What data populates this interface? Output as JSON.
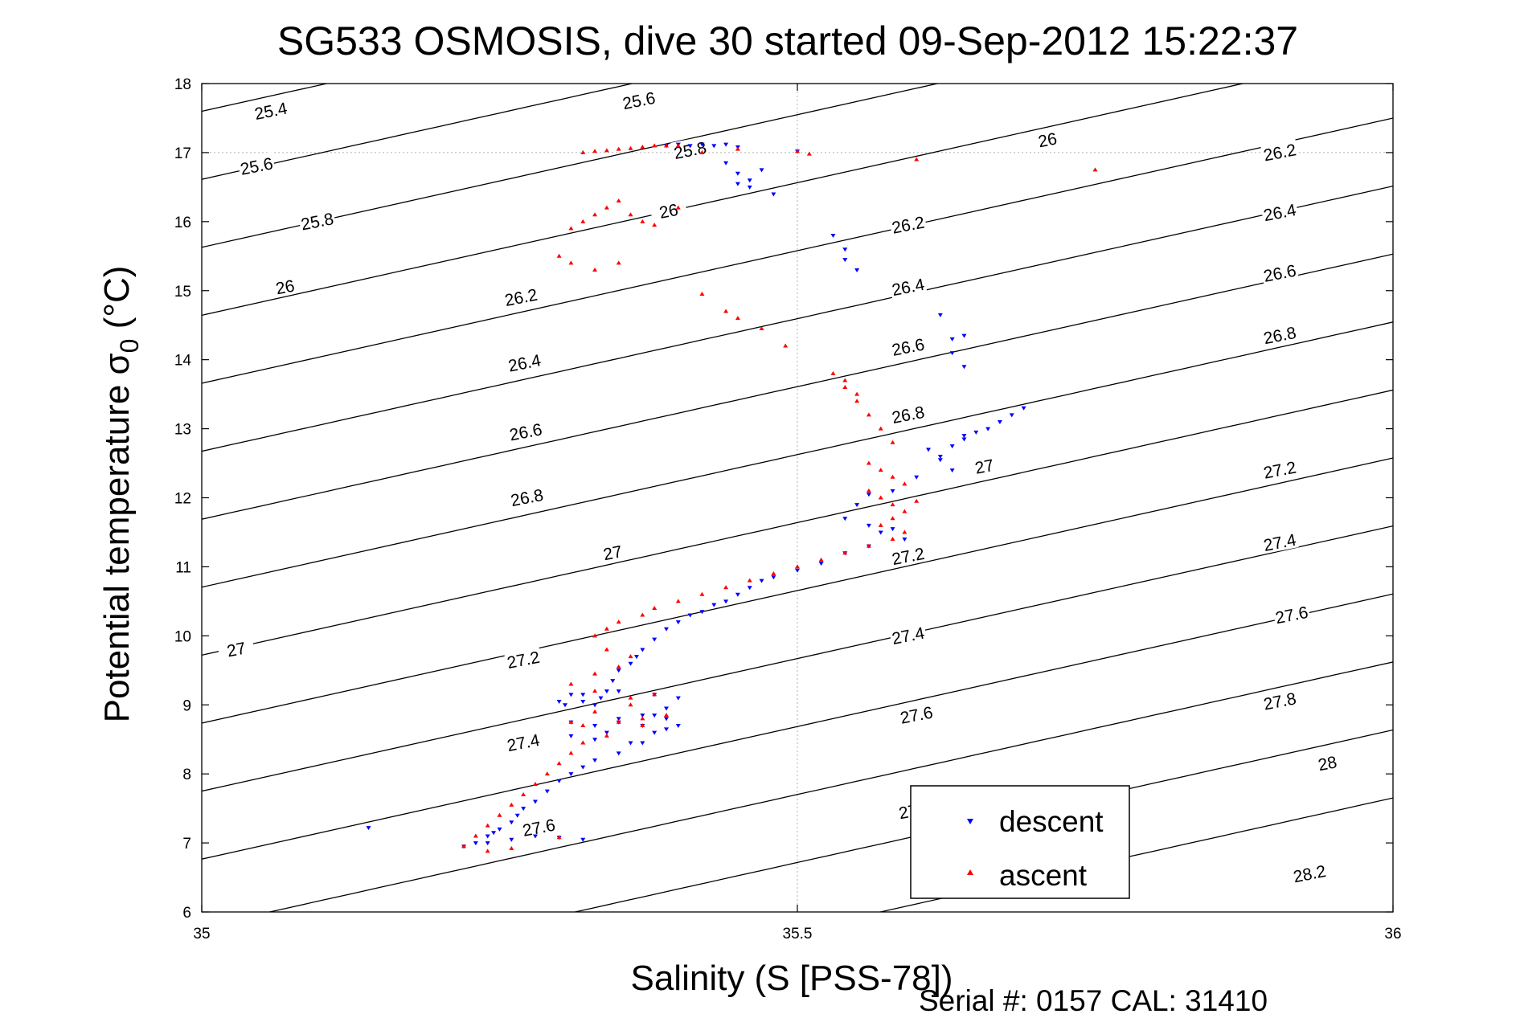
{
  "chart_data": {
    "type": "scatter",
    "title": "SG533 OSMOSIS, dive 30 started 09-Sep-2012 15:22:37",
    "xlabel": "Salinity (S [PSS-78])",
    "ylabel_main": "Potential temperature ",
    "ylabel_sigma": "σ",
    "ylabel_sub": "0",
    "ylabel_unit": " (°C)",
    "xlim": [
      35,
      36
    ],
    "ylim": [
      6,
      18
    ],
    "x_ticks": [
      35,
      35.5,
      36
    ],
    "x_tick_labels": [
      "35",
      "35.5",
      "36"
    ],
    "y_ticks": [
      6,
      7,
      8,
      9,
      10,
      11,
      12,
      13,
      14,
      15,
      16,
      17,
      18
    ],
    "y_tick_labels": [
      "6",
      "7",
      "8",
      "9",
      "10",
      "11",
      "12",
      "13",
      "14",
      "15",
      "16",
      "17",
      "18"
    ],
    "grid": {
      "x": [
        35.5
      ],
      "y": [
        17
      ]
    },
    "legend_position": "bottom-center",
    "footer": "Serial #: 0157  CAL: 31410",
    "colors": {
      "descent": "#0000ff",
      "ascent": "#ff0000",
      "contour": "#000000",
      "axes": "#000000",
      "grid": "#b0b0b0"
    },
    "contours": {
      "levels": [
        25.4,
        25.6,
        25.8,
        26,
        26.2,
        26.4,
        26.6,
        26.8,
        27,
        27.2,
        27.4,
        27.6,
        27.8,
        28,
        28.2
      ],
      "labels": [
        {
          "text": "25.4",
          "x": 35.058,
          "y": 17.6
        },
        {
          "text": "25.6",
          "x": 35.367,
          "y": 17.75
        },
        {
          "text": "25.6",
          "x": 35.046,
          "y": 16.8
        },
        {
          "text": "25.8",
          "x": 35.41,
          "y": 17.03
        },
        {
          "text": "26",
          "x": 35.71,
          "y": 17.18
        },
        {
          "text": "26.2",
          "x": 35.905,
          "y": 17.0
        },
        {
          "text": "25.8",
          "x": 35.097,
          "y": 16.0
        },
        {
          "text": "26",
          "x": 35.392,
          "y": 16.15
        },
        {
          "text": "26.2",
          "x": 35.593,
          "y": 15.95
        },
        {
          "text": "26.4",
          "x": 35.905,
          "y": 16.13
        },
        {
          "text": "26",
          "x": 35.07,
          "y": 15.05
        },
        {
          "text": "26.2",
          "x": 35.268,
          "y": 14.9
        },
        {
          "text": "26.4",
          "x": 35.593,
          "y": 15.05
        },
        {
          "text": "26.6",
          "x": 35.905,
          "y": 15.25
        },
        {
          "text": "26.4",
          "x": 35.271,
          "y": 13.95
        },
        {
          "text": "26.6",
          "x": 35.593,
          "y": 14.18
        },
        {
          "text": "26.8",
          "x": 35.905,
          "y": 14.35
        },
        {
          "text": "26.6",
          "x": 35.272,
          "y": 12.95
        },
        {
          "text": "26.8",
          "x": 35.593,
          "y": 13.2
        },
        {
          "text": "27",
          "x": 35.657,
          "y": 12.45
        },
        {
          "text": "26.8",
          "x": 35.273,
          "y": 12.0
        },
        {
          "text": "27.2",
          "x": 35.905,
          "y": 12.4
        },
        {
          "text": "27",
          "x": 35.345,
          "y": 11.2
        },
        {
          "text": "27.2",
          "x": 35.593,
          "y": 11.15
        },
        {
          "text": "27.4",
          "x": 35.905,
          "y": 11.35
        },
        {
          "text": "27",
          "x": 35.029,
          "y": 9.8
        },
        {
          "text": "27.2",
          "x": 35.27,
          "y": 9.65
        },
        {
          "text": "27.4",
          "x": 35.593,
          "y": 10.0
        },
        {
          "text": "27.6",
          "x": 35.915,
          "y": 10.3
        },
        {
          "text": "27.4",
          "x": 35.27,
          "y": 8.45
        },
        {
          "text": "27.6",
          "x": 35.6,
          "y": 8.85
        },
        {
          "text": "27.8",
          "x": 35.905,
          "y": 9.05
        },
        {
          "text": "27.6",
          "x": 35.283,
          "y": 7.22
        },
        {
          "text": "27",
          "x": 35.593,
          "y": 7.45
        },
        {
          "text": "28",
          "x": 35.945,
          "y": 8.15
        },
        {
          "text": "28.2",
          "x": 35.93,
          "y": 6.55
        }
      ]
    },
    "series": [
      {
        "name": "descent",
        "marker": "triangle-down",
        "x": [
          35.39,
          35.4,
          35.41,
          35.42,
          35.43,
          35.44,
          35.45,
          35.5,
          35.44,
          35.45,
          35.46,
          35.47,
          35.45,
          35.46,
          35.48,
          35.53,
          35.54,
          35.54,
          35.55,
          35.62,
          35.63,
          35.63,
          35.64,
          35.64,
          35.66,
          35.67,
          35.68,
          35.69,
          35.65,
          35.64,
          35.63,
          35.62,
          35.61,
          35.62,
          35.63,
          35.64,
          35.6,
          35.58,
          35.56,
          35.55,
          35.54,
          35.56,
          35.57,
          35.58,
          35.59,
          35.56,
          35.54,
          35.52,
          35.5,
          35.48,
          35.47,
          35.46,
          35.45,
          35.44,
          35.43,
          35.42,
          35.41,
          35.4,
          35.39,
          35.38,
          35.37,
          35.365,
          35.36,
          35.35,
          35.345,
          35.34,
          35.335,
          35.33,
          35.32,
          35.31,
          35.305,
          35.3,
          35.32,
          35.35,
          35.38,
          35.4,
          35.39,
          35.37,
          35.35,
          35.33,
          35.31,
          35.35,
          35.38,
          35.39,
          35.37,
          35.34,
          35.31,
          35.33,
          35.36,
          35.38,
          35.4,
          35.39,
          35.37,
          35.35,
          35.33,
          35.32,
          35.31,
          35.3,
          35.29,
          35.28,
          35.27,
          35.265,
          35.26,
          35.25,
          35.245,
          35.24,
          35.23,
          35.22,
          35.24,
          35.26,
          35.28,
          35.3,
          35.32,
          35.14
        ],
        "y": [
          17.1,
          17.12,
          17.1,
          17.12,
          17.1,
          17.12,
          17.08,
          17.02,
          16.85,
          16.7,
          16.6,
          16.75,
          16.55,
          16.5,
          16.4,
          15.8,
          15.6,
          15.45,
          15.3,
          14.65,
          14.3,
          14.1,
          13.9,
          14.35,
          13.0,
          13.1,
          13.2,
          13.3,
          12.95,
          12.85,
          12.75,
          12.6,
          12.7,
          12.55,
          12.4,
          12.9,
          12.3,
          12.1,
          12.05,
          11.9,
          11.7,
          11.6,
          11.5,
          11.55,
          11.4,
          11.3,
          11.2,
          11.05,
          10.95,
          10.85,
          10.8,
          10.7,
          10.6,
          10.5,
          10.45,
          10.35,
          10.3,
          10.2,
          10.1,
          9.95,
          9.8,
          9.7,
          9.6,
          9.5,
          9.35,
          9.2,
          9.1,
          9.0,
          9.05,
          9.15,
          9.0,
          9.05,
          9.15,
          9.2,
          9.15,
          9.1,
          8.95,
          8.85,
          8.75,
          8.7,
          8.75,
          8.8,
          8.85,
          8.8,
          8.7,
          8.6,
          8.55,
          8.5,
          8.45,
          8.6,
          8.7,
          8.65,
          8.45,
          8.3,
          8.2,
          8.1,
          8.0,
          7.9,
          7.75,
          7.6,
          7.5,
          7.4,
          7.3,
          7.2,
          7.15,
          7.1,
          7.0,
          6.95,
          7.0,
          7.05,
          7.1,
          7.08,
          7.05,
          7.22
        ]
      },
      {
        "name": "ascent",
        "marker": "triangle-up",
        "x": [
          35.32,
          35.33,
          35.34,
          35.35,
          35.36,
          35.37,
          35.38,
          35.39,
          35.4,
          35.42,
          35.45,
          35.5,
          35.51,
          35.35,
          35.34,
          35.33,
          35.32,
          35.31,
          35.3,
          35.36,
          35.37,
          35.38,
          35.4,
          35.31,
          35.33,
          35.35,
          35.42,
          35.44,
          35.45,
          35.47,
          35.49,
          35.53,
          35.54,
          35.55,
          35.56,
          35.54,
          35.55,
          35.57,
          35.58,
          35.56,
          35.57,
          35.58,
          35.59,
          35.56,
          35.57,
          35.58,
          35.59,
          35.6,
          35.58,
          35.57,
          35.59,
          35.58,
          35.56,
          35.54,
          35.52,
          35.5,
          35.48,
          35.46,
          35.44,
          35.42,
          35.4,
          35.38,
          35.37,
          35.35,
          35.34,
          35.33,
          35.34,
          35.36,
          35.35,
          35.33,
          35.31,
          35.33,
          35.36,
          35.38,
          35.36,
          35.33,
          35.31,
          35.32,
          35.35,
          35.37,
          35.39,
          35.37,
          35.34,
          35.32,
          35.31,
          35.3,
          35.29,
          35.28,
          35.27,
          35.26,
          35.25,
          35.24,
          35.23,
          35.22,
          35.24,
          35.26,
          35.3,
          35.6,
          35.75
        ],
        "y": [
          17.0,
          17.02,
          17.03,
          17.05,
          17.06,
          17.08,
          17.1,
          17.1,
          17.1,
          17.0,
          17.05,
          17.02,
          16.98,
          16.3,
          16.2,
          16.1,
          16.0,
          15.9,
          15.5,
          16.1,
          16.0,
          15.95,
          16.2,
          15.4,
          15.3,
          15.4,
          14.95,
          14.7,
          14.6,
          14.45,
          14.2,
          13.8,
          13.6,
          13.4,
          13.2,
          13.7,
          13.5,
          13.0,
          12.8,
          12.5,
          12.4,
          12.3,
          12.2,
          12.1,
          12.0,
          11.9,
          11.8,
          11.95,
          11.7,
          11.6,
          11.5,
          11.4,
          11.3,
          11.2,
          11.1,
          11.0,
          10.9,
          10.8,
          10.7,
          10.6,
          10.5,
          10.4,
          10.3,
          10.2,
          10.1,
          10.0,
          9.8,
          9.7,
          9.55,
          9.45,
          9.3,
          9.2,
          9.1,
          9.15,
          9.0,
          8.9,
          8.75,
          8.7,
          8.75,
          8.8,
          8.85,
          8.7,
          8.55,
          8.45,
          8.3,
          8.15,
          8.0,
          7.85,
          7.7,
          7.55,
          7.4,
          7.25,
          7.1,
          6.95,
          6.88,
          6.92,
          7.08,
          16.9,
          16.75
        ]
      }
    ]
  }
}
